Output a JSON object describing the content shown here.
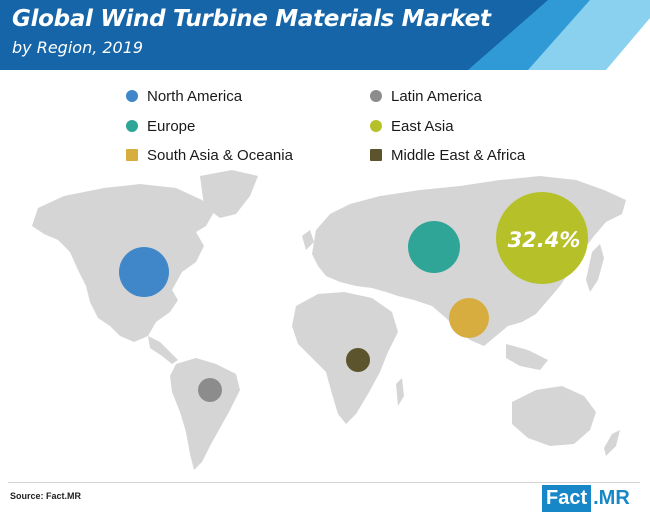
{
  "header": {
    "title": "Global Wind Turbine Materials Market",
    "subtitle": "by Region, 2019"
  },
  "chart_data": {
    "type": "bubble-map",
    "title": "Global Wind Turbine Materials Market",
    "subtitle": "by Region, 2019",
    "series": [
      {
        "name": "North America",
        "color": "#3f87c9",
        "value": null
      },
      {
        "name": "Latin America",
        "color": "#8c8c8c",
        "value": null
      },
      {
        "name": "Europe",
        "color": "#2fa597",
        "value": null
      },
      {
        "name": "East Asia",
        "color": "#b6c12a",
        "value": 32.4,
        "label": "32.4%"
      },
      {
        "name": "South Asia & Oceania",
        "color": "#d6ad3e",
        "value": null
      },
      {
        "name": "Middle East & Africa",
        "color": "#5b542c",
        "value": null
      }
    ],
    "legend_position": "top"
  },
  "legend": {
    "items": [
      {
        "label": "North America",
        "color": "#3f87c9"
      },
      {
        "label": "Latin America",
        "color": "#8c8c8c"
      },
      {
        "label": "Europe",
        "color": "#2fa597"
      },
      {
        "label": "East Asia",
        "color": "#b6c12a"
      },
      {
        "label": "South Asia & Oceania",
        "color": "#d6ad3e"
      },
      {
        "label": "Middle East & Africa",
        "color": "#5b542c"
      }
    ]
  },
  "footer": {
    "source": "Source: Fact.MR",
    "logo_box": "Fact",
    "logo_rest": ".MR"
  },
  "colors": {
    "header_dark": "#1565a8",
    "header_mid": "#2f9ad6",
    "header_light": "#8ad1ef",
    "map_land": "#d5d5d5",
    "brand": "#1787c8"
  }
}
